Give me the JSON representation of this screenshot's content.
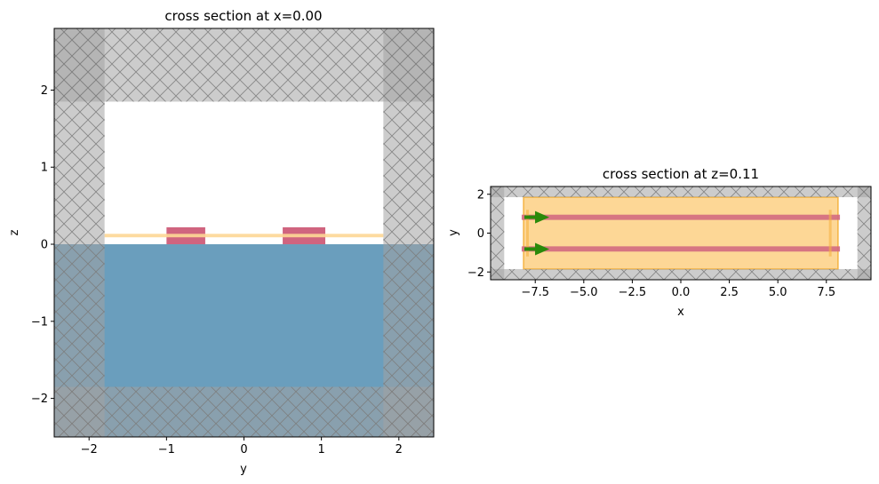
{
  "colors": {
    "pml": "#a3a3a3",
    "pml_corner": "#8a8a8a",
    "substrate": "#6a9ebd",
    "waveguide": "#d0647f",
    "monitor": "#fdd796",
    "monitor_edge": "#f5b342",
    "source_arrow": "#2a8a0a",
    "hatch": "#7c7c7c"
  },
  "chart_data": [
    {
      "type": "other",
      "title": "cross section at x=0.00",
      "xlabel": "y",
      "ylabel": "z",
      "xlim": [
        -2.45,
        2.45
      ],
      "ylim": [
        -2.5,
        2.8
      ],
      "xticks": [
        -2,
        -1,
        0,
        1,
        2
      ],
      "xticklabels": [
        "−2",
        "−1",
        "0",
        "1",
        "2"
      ],
      "yticks": [
        -2,
        -1,
        0,
        1,
        2
      ],
      "yticklabels": [
        "−2",
        "−1",
        "0",
        "1",
        "2"
      ],
      "pml_regions": [
        {
          "x": [
            -2.45,
            -1.8
          ],
          "y": [
            -2.5,
            2.8
          ]
        },
        {
          "x": [
            1.8,
            2.45
          ],
          "y": [
            -2.5,
            2.8
          ]
        },
        {
          "x": [
            -2.45,
            2.45
          ],
          "y": [
            1.85,
            2.8
          ]
        },
        {
          "x": [
            -2.45,
            2.45
          ],
          "y": [
            -2.5,
            -1.85
          ]
        }
      ],
      "substrate": {
        "x": [
          -2.45,
          2.45
        ],
        "y": [
          -2.5,
          0
        ]
      },
      "waveguides": [
        {
          "x": [
            -1.0,
            -0.5
          ],
          "y": [
            0,
            0.22
          ]
        },
        {
          "x": [
            0.5,
            1.05
          ],
          "y": [
            0,
            0.22
          ]
        }
      ],
      "monitor": {
        "x": [
          -1.8,
          1.8
        ],
        "y": [
          0.09,
          0.135
        ]
      }
    },
    {
      "type": "other",
      "title": "cross section at z=0.11",
      "xlabel": "x",
      "ylabel": "y",
      "xlim": [
        -9.8,
        9.8
      ],
      "ylim": [
        -2.4,
        2.4
      ],
      "xticks": [
        -7.5,
        -5.0,
        -2.5,
        0.0,
        2.5,
        5.0,
        7.5
      ],
      "xticklabels": [
        "−7.5",
        "−5.0",
        "−2.5",
        "0.0",
        "2.5",
        "5.0",
        "7.5"
      ],
      "yticks": [
        -2,
        0,
        2
      ],
      "yticklabels": [
        "−2",
        "0",
        "2"
      ],
      "pml_regions": [
        {
          "x": [
            -9.8,
            -9.1
          ],
          "y": [
            -2.4,
            2.4
          ]
        },
        {
          "x": [
            9.1,
            9.8
          ],
          "y": [
            -2.4,
            2.4
          ]
        },
        {
          "x": [
            -9.8,
            9.8
          ],
          "y": [
            1.85,
            2.4
          ]
        },
        {
          "x": [
            -9.8,
            9.8
          ],
          "y": [
            -2.4,
            -1.85
          ]
        }
      ],
      "monitor": {
        "x": [
          -8.1,
          8.1
        ],
        "y": [
          -1.85,
          1.85
        ]
      },
      "waveguides": [
        {
          "x": [
            -8.2,
            8.2
          ],
          "y": [
            0.68,
            0.95
          ]
        },
        {
          "x": [
            -8.2,
            8.2
          ],
          "y": [
            -0.95,
            -0.68
          ]
        }
      ],
      "sources": [
        {
          "x": -7.6,
          "y": 0.82,
          "direction": "+x"
        },
        {
          "x": -7.6,
          "y": -0.82,
          "direction": "+x"
        }
      ]
    }
  ]
}
